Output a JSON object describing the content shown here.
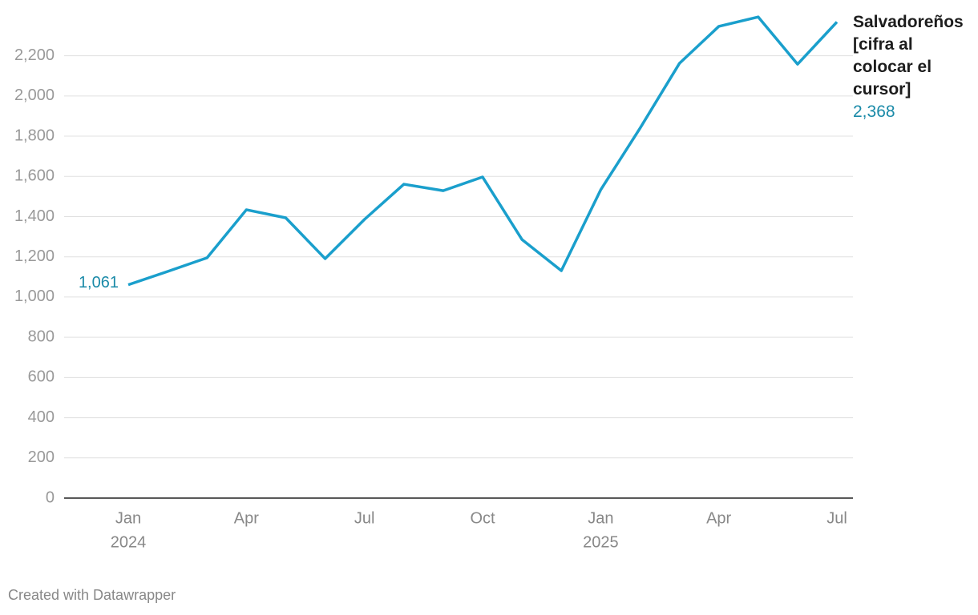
{
  "chart_data": {
    "type": "line",
    "categories": [
      "Jan",
      null,
      null,
      "Apr",
      null,
      null,
      "Jul",
      null,
      null,
      "Oct",
      null,
      null,
      "Jan",
      null,
      null,
      "Apr",
      null,
      null,
      "Jul"
    ],
    "years": [
      "2024",
      null,
      null,
      null,
      null,
      null,
      null,
      null,
      null,
      null,
      null,
      null,
      "2025",
      null,
      null,
      null,
      null,
      null,
      null
    ],
    "series": [
      {
        "name": "Salvadoreños [cifra al colocar el cursor]",
        "color": "#1a9fcc",
        "values": [
          1061,
          1127,
          1195,
          1434,
          1394,
          1191,
          1386,
          1561,
          1529,
          1597,
          1286,
          1131,
          1533,
          1840,
          2162,
          2346,
          2393,
          2158,
          2368
        ],
        "value_labels": [
          "1,061",
          null,
          null,
          null,
          null,
          null,
          null,
          null,
          null,
          null,
          null,
          null,
          null,
          null,
          null,
          null,
          null,
          null,
          "2,368"
        ]
      }
    ],
    "ylim": [
      0,
      2400
    ],
    "yticks": [
      0,
      200,
      400,
      600,
      800,
      {
        "value": 1000,
        "label": "1,000"
      },
      {
        "value": 1200,
        "label": "1,200"
      },
      {
        "value": 1400,
        "label": "1,400"
      },
      {
        "value": 1600,
        "label": "1,600"
      },
      {
        "value": 1800,
        "label": "1,800"
      },
      {
        "value": 2000,
        "label": "2,000"
      },
      {
        "value": 2200,
        "label": "2,200"
      }
    ],
    "grid": true,
    "footer": "Created with Datawrapper"
  }
}
